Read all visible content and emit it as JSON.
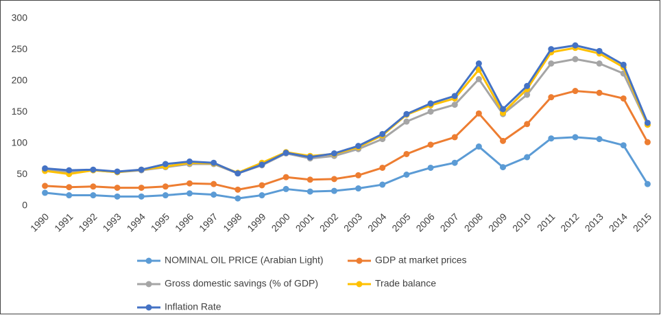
{
  "chart_data": {
    "type": "line",
    "categories": [
      "1990",
      "1991",
      "1992",
      "1993",
      "1994",
      "1995",
      "1996",
      "1997",
      "1998",
      "1999",
      "2000",
      "2001",
      "2002",
      "2003",
      "2004",
      "2005",
      "2006",
      "2007",
      "2008",
      "2009",
      "2010",
      "2011",
      "2012",
      "2013",
      "2014",
      "2015"
    ],
    "series": [
      {
        "name": "NOMINAL OIL PRICE (Arabian Light)",
        "color": "#5B9BD5",
        "values": [
          21,
          17,
          17,
          15,
          15,
          17,
          20,
          18,
          12,
          17,
          27,
          23,
          24,
          28,
          34,
          50,
          61,
          69,
          95,
          62,
          78,
          108,
          110,
          107,
          97,
          35
        ]
      },
      {
        "name": "GDP at market prices",
        "color": "#ED7D31",
        "values": [
          32,
          30,
          31,
          29,
          29,
          31,
          36,
          35,
          26,
          33,
          46,
          42,
          43,
          49,
          61,
          83,
          98,
          110,
          148,
          104,
          131,
          174,
          184,
          181,
          172,
          102
        ]
      },
      {
        "name": "Gross domestic savings (% of GDP)",
        "color": "#A5A5A5",
        "values": [
          57,
          54,
          57,
          54,
          57,
          62,
          67,
          67,
          52,
          65,
          84,
          76,
          80,
          91,
          107,
          135,
          151,
          162,
          203,
          147,
          178,
          228,
          235,
          228,
          212,
          130
        ]
      },
      {
        "name": "Trade balance",
        "color": "#FFC000",
        "values": [
          56,
          51,
          57,
          54,
          58,
          63,
          69,
          68,
          53,
          69,
          86,
          80,
          83,
          94,
          113,
          146,
          161,
          172,
          218,
          149,
          187,
          246,
          253,
          244,
          222,
          130
        ]
      },
      {
        "name": "Inflation Rate",
        "color": "#4472C4",
        "values": [
          60,
          57,
          58,
          55,
          58,
          67,
          71,
          69,
          52,
          66,
          85,
          78,
          84,
          96,
          115,
          147,
          164,
          176,
          228,
          155,
          192,
          251,
          257,
          248,
          226,
          133
        ]
      }
    ],
    "ylim": [
      0,
      300
    ],
    "yticks": [
      0,
      50,
      100,
      150,
      200,
      250,
      300
    ],
    "grid": false
  }
}
